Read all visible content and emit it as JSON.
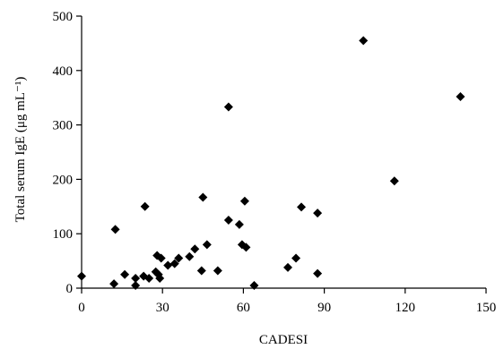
{
  "chart_data": {
    "type": "scatter",
    "xlabel": "CADESI",
    "ylabel": "Total serum IgE (μg mL⁻¹)",
    "xlim": [
      0,
      150
    ],
    "ylim": [
      0,
      500
    ],
    "xticks": [
      0,
      30,
      60,
      90,
      120,
      150
    ],
    "yticks": [
      0,
      100,
      200,
      300,
      400,
      500
    ],
    "marker": "diamond",
    "marker_color": "#000000",
    "grid": false,
    "points": [
      {
        "x": 0,
        "y": 22
      },
      {
        "x": 12,
        "y": 8
      },
      {
        "x": 12.5,
        "y": 108
      },
      {
        "x": 16,
        "y": 25
      },
      {
        "x": 20,
        "y": 5
      },
      {
        "x": 20,
        "y": 18
      },
      {
        "x": 23,
        "y": 22
      },
      {
        "x": 23.5,
        "y": 150
      },
      {
        "x": 25,
        "y": 18
      },
      {
        "x": 27.5,
        "y": 30
      },
      {
        "x": 28,
        "y": 60
      },
      {
        "x": 28.5,
        "y": 25
      },
      {
        "x": 29,
        "y": 18
      },
      {
        "x": 29.5,
        "y": 55
      },
      {
        "x": 32,
        "y": 42
      },
      {
        "x": 34.5,
        "y": 45
      },
      {
        "x": 36,
        "y": 55
      },
      {
        "x": 40,
        "y": 58
      },
      {
        "x": 42,
        "y": 72
      },
      {
        "x": 44.5,
        "y": 32
      },
      {
        "x": 45,
        "y": 167
      },
      {
        "x": 46.5,
        "y": 80
      },
      {
        "x": 50.5,
        "y": 32
      },
      {
        "x": 54.5,
        "y": 125
      },
      {
        "x": 54.5,
        "y": 333
      },
      {
        "x": 58.5,
        "y": 117
      },
      {
        "x": 59.5,
        "y": 80
      },
      {
        "x": 60.5,
        "y": 160
      },
      {
        "x": 61,
        "y": 75
      },
      {
        "x": 64,
        "y": 5
      },
      {
        "x": 76.5,
        "y": 38
      },
      {
        "x": 79.5,
        "y": 55
      },
      {
        "x": 81.5,
        "y": 149
      },
      {
        "x": 87.5,
        "y": 27
      },
      {
        "x": 87.5,
        "y": 138
      },
      {
        "x": 104.5,
        "y": 455
      },
      {
        "x": 116,
        "y": 197
      },
      {
        "x": 140.5,
        "y": 352
      }
    ]
  }
}
